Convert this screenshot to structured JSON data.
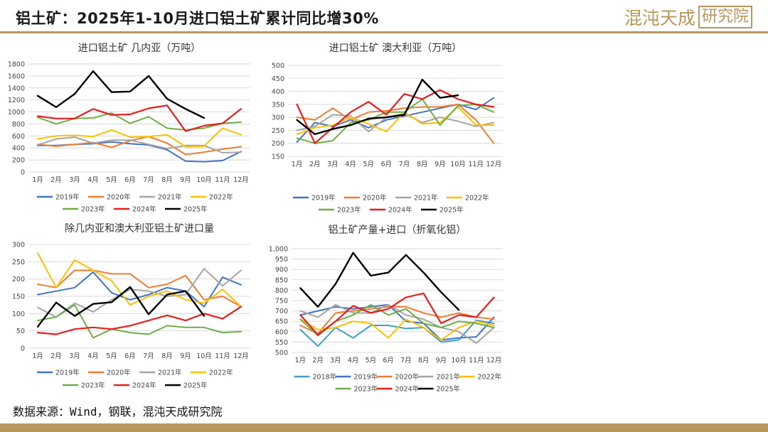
{
  "header": {
    "title": "铝土矿：2025年1-10月进口铝土矿累计同比增30%",
    "logo_text": "混沌天成",
    "logo_box_text": "研究院"
  },
  "footer": {
    "source": "数据来源：Wind，钢联，混沌天成研究院"
  },
  "colors": {
    "accent": "#b9965a",
    "y2018": "#3fa0c4",
    "y2019": "#4472c4",
    "y2020": "#ed7d31",
    "y2021": "#a5a5a5",
    "y2022": "#ffc000",
    "y2023": "#70ad47",
    "y2024": "#e61e1e",
    "y2025": "#000000"
  },
  "chart_data": [
    {
      "type": "line",
      "title": "进口铝土矿 几内亚（万吨）",
      "categories": [
        "1月",
        "2月",
        "3月",
        "4月",
        "5月",
        "6月",
        "7月",
        "8月",
        "9月",
        "10月",
        "11月",
        "12月"
      ],
      "ylim": [
        0,
        1800
      ],
      "yticks": [
        "0",
        "200",
        "400",
        "600",
        "800",
        "1000",
        "1200",
        "1400",
        "1600",
        "1800"
      ],
      "series": [
        {
          "name": "2019年",
          "values": [
            440,
            440,
            460,
            470,
            500,
            470,
            450,
            370,
            180,
            170,
            190,
            340
          ]
        },
        {
          "name": "2020年",
          "values": [
            460,
            430,
            460,
            490,
            410,
            520,
            590,
            480,
            290,
            330,
            380,
            420
          ]
        },
        {
          "name": "2021年",
          "values": [
            450,
            550,
            580,
            480,
            530,
            530,
            460,
            390,
            440,
            440,
            320,
            330
          ]
        },
        {
          "name": "2022年",
          "values": [
            550,
            600,
            610,
            590,
            700,
            580,
            590,
            620,
            420,
            430,
            730,
            620
          ]
        },
        {
          "name": "2023年",
          "values": [
            910,
            800,
            890,
            900,
            980,
            810,
            920,
            730,
            700,
            730,
            810,
            830
          ]
        },
        {
          "name": "2024年",
          "values": [
            930,
            890,
            890,
            1050,
            950,
            960,
            1060,
            1110,
            680,
            770,
            810,
            1050
          ]
        },
        {
          "name": "2025年",
          "values": [
            1270,
            1080,
            1300,
            1680,
            1330,
            1340,
            1600,
            1220,
            1050,
            900,
            null,
            null
          ]
        }
      ]
    },
    {
      "type": "line",
      "title": "进口铝土矿 澳大利亚（万吨）",
      "categories": [
        "1月",
        "2月",
        "3月",
        "4月",
        "5月",
        "6月",
        "7月",
        "8月",
        "9月",
        "10月",
        "11月",
        "12月"
      ],
      "ylim": [
        150,
        500
      ],
      "yticks": [
        "150",
        "200",
        "250",
        "300",
        "350",
        "400",
        "450",
        "500"
      ],
      "series": [
        {
          "name": "2019年",
          "values": [
            205,
            280,
            265,
            290,
            260,
            290,
            305,
            320,
            335,
            350,
            330,
            375
          ]
        },
        {
          "name": "2020年",
          "values": [
            300,
            290,
            335,
            290,
            320,
            325,
            335,
            340,
            340,
            350,
            290,
            200
          ]
        },
        {
          "name": "2021年",
          "values": [
            250,
            265,
            310,
            305,
            245,
            300,
            315,
            280,
            300,
            285,
            265,
            280
          ]
        },
        {
          "name": "2022年",
          "values": [
            235,
            260,
            270,
            300,
            275,
            245,
            320,
            275,
            280,
            340,
            270,
            270
          ]
        },
        {
          "name": "2023年",
          "values": [
            220,
            200,
            210,
            280,
            290,
            320,
            320,
            370,
            270,
            345,
            350,
            320
          ]
        },
        {
          "name": "2024年",
          "values": [
            350,
            200,
            260,
            320,
            360,
            310,
            390,
            370,
            405,
            370,
            350,
            340
          ]
        },
        {
          "name": "2025年",
          "values": [
            290,
            235,
            255,
            270,
            295,
            300,
            310,
            445,
            375,
            385,
            null,
            null
          ]
        }
      ]
    },
    {
      "type": "line",
      "title": "除几内亚和澳大利亚铝土矿进口量",
      "categories": [
        "1月",
        "2月",
        "3月",
        "4月",
        "5月",
        "6月",
        "7月",
        "8月",
        "9月",
        "10月",
        "11月",
        "12月"
      ],
      "ylim": [
        0,
        300
      ],
      "yticks": [
        "0",
        "50",
        "100",
        "150",
        "200",
        "250",
        "300"
      ],
      "series": [
        {
          "name": "2019年",
          "values": [
            155,
            165,
            175,
            220,
            160,
            140,
            155,
            175,
            165,
            120,
            205,
            183
          ]
        },
        {
          "name": "2020年",
          "values": [
            185,
            175,
            225,
            225,
            215,
            215,
            175,
            185,
            210,
            140,
            150,
            120
          ]
        },
        {
          "name": "2021年",
          "values": [
            118,
            90,
            130,
            105,
            140,
            170,
            165,
            150,
            155,
            230,
            180,
            225
          ]
        },
        {
          "name": "2022年",
          "values": [
            275,
            175,
            255,
            225,
            195,
            125,
            150,
            165,
            140,
            130,
            170,
            120
          ]
        },
        {
          "name": "2023年",
          "values": [
            80,
            90,
            125,
            30,
            55,
            45,
            40,
            65,
            60,
            60,
            45,
            48
          ]
        },
        {
          "name": "2024年",
          "values": [
            45,
            40,
            55,
            60,
            55,
            65,
            80,
            95,
            80,
            100,
            85,
            120
          ]
        },
        {
          "name": "2025年",
          "values": [
            62,
            132,
            93,
            128,
            133,
            177,
            98,
            155,
            165,
            93,
            null,
            null
          ]
        }
      ]
    },
    {
      "type": "line",
      "title": "铝土矿产量+进口（折氧化铝）",
      "categories": [
        "1月",
        "2月",
        "3月",
        "4月",
        "5月",
        "6月",
        "7月",
        "8月",
        "9月",
        "10月",
        "11月",
        "12月"
      ],
      "ylim": [
        500,
        1000
      ],
      "yticks": [
        "500",
        "550",
        "600",
        "650",
        "700",
        "750",
        "800",
        "850",
        "900",
        "950",
        "1,000"
      ],
      "series": [
        {
          "name": "2018年",
          "values": [
            610,
            530,
            620,
            570,
            630,
            630,
            615,
            620,
            550,
            560,
            655,
            640
          ]
        },
        {
          "name": "2019年",
          "values": [
            680,
            700,
            720,
            710,
            720,
            730,
            650,
            640,
            560,
            570,
            575,
            670
          ]
        },
        {
          "name": "2020年",
          "values": [
            630,
            590,
            690,
            700,
            710,
            720,
            720,
            690,
            670,
            690,
            670,
            660
          ]
        },
        {
          "name": "2021年",
          "values": [
            700,
            670,
            730,
            690,
            690,
            730,
            680,
            660,
            620,
            600,
            545,
            620
          ]
        },
        {
          "name": "2022年",
          "values": [
            660,
            610,
            620,
            650,
            640,
            570,
            660,
            620,
            560,
            620,
            650,
            630
          ]
        },
        {
          "name": "2023年",
          "values": [
            660,
            580,
            650,
            680,
            730,
            680,
            710,
            640,
            620,
            650,
            640,
            620
          ]
        },
        {
          "name": "2024年",
          "values": [
            680,
            585,
            650,
            725,
            690,
            710,
            765,
            785,
            640,
            680,
            670,
            765
          ]
        },
        {
          "name": "2025年",
          "values": [
            810,
            720,
            830,
            980,
            870,
            885,
            970,
            885,
            790,
            705,
            null,
            null
          ]
        }
      ]
    }
  ]
}
